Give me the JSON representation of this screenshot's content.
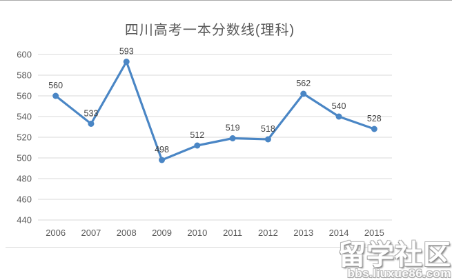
{
  "chart_data": {
    "type": "line",
    "title": "四川高考一本分数线(理科)",
    "categories": [
      "2006",
      "2007",
      "2008",
      "2009",
      "2010",
      "2011",
      "2012",
      "2013",
      "2014",
      "2015"
    ],
    "values": [
      560,
      533,
      593,
      498,
      512,
      519,
      518,
      562,
      540,
      528
    ],
    "xlabel": "",
    "ylabel": "",
    "ylim": [
      440,
      600
    ],
    "ytick_step": 20,
    "grid": true,
    "legend": "none",
    "data_labels_shown": true,
    "line_color": "#4a86c5",
    "marker_color": "#4a86c5",
    "grid_color": "#d9d9d9",
    "axis_text_color": "#595959",
    "data_label_color": "#404040"
  },
  "watermark": {
    "line1": "留学社区",
    "line2": "bbs.liuxue86.com"
  }
}
